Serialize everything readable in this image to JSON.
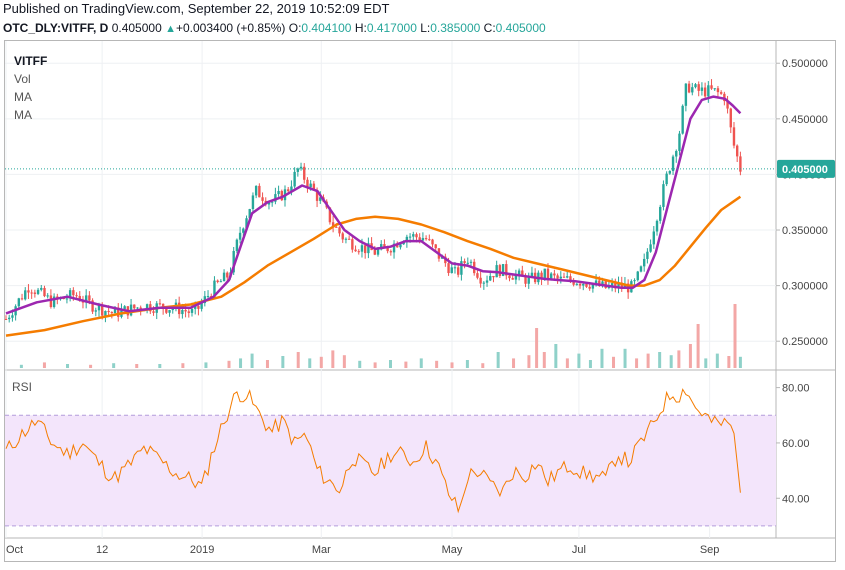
{
  "header": {
    "published": "Published on TradingView.com, September 22, 2019 10:52:09 EDT",
    "symbol": "OTC_DLY:VITFF, D",
    "last": "0.405000",
    "change_icon": "triangle-up-icon",
    "change": "+0.003400 (+0.85%)",
    "o_label": "O:",
    "o_value": "0.404100",
    "h_label": "H:",
    "h_value": "0.417000",
    "l_label": "L:",
    "l_value": "0.385000",
    "c_label": "C:",
    "c_value": "0.405000"
  },
  "legend": {
    "symbol": "VITFF",
    "vol": "Vol",
    "ma1": "MA",
    "ma2": "MA"
  },
  "colors": {
    "up": "#26a69a",
    "down": "#ef5350",
    "ma_fast": "#9c27b0",
    "ma_slow": "#f57c00",
    "rsi": "#f57c00",
    "rsi_band": "#f3e5fb",
    "price_tag": "#26a69a"
  },
  "chart_data": [
    {
      "type": "candlestick",
      "title": "VITFF",
      "y_ticks": [
        "0.500000",
        "0.450000",
        "0.400000",
        "0.350000",
        "0.300000",
        "0.250000"
      ],
      "y_tick_values": [
        0.5,
        0.45,
        0.4,
        0.35,
        0.3,
        0.25
      ],
      "ylim": [
        0.225,
        0.52
      ],
      "x_ticks": [
        "Oct",
        "12",
        "2019",
        "Mar",
        "May",
        "Jul",
        "Sep"
      ],
      "x_tick_positions": [
        0.0,
        0.125,
        0.255,
        0.41,
        0.58,
        0.745,
        0.915
      ],
      "last_price": "0.405000",
      "last_price_value": 0.405,
      "series": [
        {
          "name": "MA",
          "kind": "ma_fast"
        },
        {
          "name": "MA",
          "kind": "ma_slow"
        }
      ],
      "price_path": [
        [
          0.0,
          0.27
        ],
        [
          0.03,
          0.3
        ],
        [
          0.06,
          0.285
        ],
        [
          0.09,
          0.292
        ],
        [
          0.11,
          0.283
        ],
        [
          0.14,
          0.275
        ],
        [
          0.18,
          0.282
        ],
        [
          0.22,
          0.28
        ],
        [
          0.245,
          0.275
        ],
        [
          0.27,
          0.298
        ],
        [
          0.29,
          0.31
        ],
        [
          0.305,
          0.35
        ],
        [
          0.325,
          0.385
        ],
        [
          0.345,
          0.375
        ],
        [
          0.365,
          0.385
        ],
        [
          0.38,
          0.405
        ],
        [
          0.395,
          0.39
        ],
        [
          0.41,
          0.375
        ],
        [
          0.425,
          0.355
        ],
        [
          0.44,
          0.342
        ],
        [
          0.46,
          0.335
        ],
        [
          0.48,
          0.33
        ],
        [
          0.5,
          0.335
        ],
        [
          0.52,
          0.345
        ],
        [
          0.545,
          0.343
        ],
        [
          0.565,
          0.325
        ],
        [
          0.585,
          0.31
        ],
        [
          0.6,
          0.325
        ],
        [
          0.62,
          0.305
        ],
        [
          0.64,
          0.315
        ],
        [
          0.66,
          0.31
        ],
        [
          0.68,
          0.305
        ],
        [
          0.7,
          0.31
        ],
        [
          0.72,
          0.305
        ],
        [
          0.74,
          0.305
        ],
        [
          0.76,
          0.302
        ],
        [
          0.78,
          0.298
        ],
        [
          0.8,
          0.3
        ],
        [
          0.815,
          0.298
        ],
        [
          0.83,
          0.32
        ],
        [
          0.845,
          0.36
        ],
        [
          0.86,
          0.4
        ],
        [
          0.875,
          0.435
        ],
        [
          0.885,
          0.48
        ],
        [
          0.9,
          0.475
        ],
        [
          0.92,
          0.475
        ],
        [
          0.935,
          0.47
        ],
        [
          0.945,
          0.43
        ],
        [
          0.955,
          0.405
        ]
      ],
      "ma_fast_path": [
        [
          0.0,
          0.275
        ],
        [
          0.04,
          0.285
        ],
        [
          0.08,
          0.29
        ],
        [
          0.12,
          0.283
        ],
        [
          0.16,
          0.277
        ],
        [
          0.2,
          0.28
        ],
        [
          0.24,
          0.28
        ],
        [
          0.27,
          0.29
        ],
        [
          0.29,
          0.305
        ],
        [
          0.305,
          0.335
        ],
        [
          0.32,
          0.365
        ],
        [
          0.34,
          0.375
        ],
        [
          0.36,
          0.38
        ],
        [
          0.385,
          0.39
        ],
        [
          0.405,
          0.385
        ],
        [
          0.425,
          0.365
        ],
        [
          0.44,
          0.35
        ],
        [
          0.46,
          0.34
        ],
        [
          0.48,
          0.333
        ],
        [
          0.5,
          0.335
        ],
        [
          0.52,
          0.34
        ],
        [
          0.54,
          0.34
        ],
        [
          0.56,
          0.33
        ],
        [
          0.58,
          0.32
        ],
        [
          0.6,
          0.318
        ],
        [
          0.62,
          0.313
        ],
        [
          0.64,
          0.312
        ],
        [
          0.66,
          0.31
        ],
        [
          0.68,
          0.308
        ],
        [
          0.7,
          0.306
        ],
        [
          0.72,
          0.305
        ],
        [
          0.74,
          0.304
        ],
        [
          0.76,
          0.302
        ],
        [
          0.78,
          0.3
        ],
        [
          0.8,
          0.298
        ],
        [
          0.815,
          0.298
        ],
        [
          0.83,
          0.305
        ],
        [
          0.845,
          0.33
        ],
        [
          0.86,
          0.37
        ],
        [
          0.875,
          0.41
        ],
        [
          0.89,
          0.45
        ],
        [
          0.905,
          0.467
        ],
        [
          0.92,
          0.47
        ],
        [
          0.935,
          0.468
        ],
        [
          0.945,
          0.462
        ],
        [
          0.955,
          0.455
        ]
      ],
      "ma_slow_path": [
        [
          0.0,
          0.255
        ],
        [
          0.05,
          0.26
        ],
        [
          0.1,
          0.268
        ],
        [
          0.15,
          0.275
        ],
        [
          0.2,
          0.28
        ],
        [
          0.24,
          0.283
        ],
        [
          0.28,
          0.29
        ],
        [
          0.31,
          0.303
        ],
        [
          0.34,
          0.318
        ],
        [
          0.37,
          0.33
        ],
        [
          0.4,
          0.342
        ],
        [
          0.43,
          0.355
        ],
        [
          0.455,
          0.36
        ],
        [
          0.48,
          0.362
        ],
        [
          0.51,
          0.36
        ],
        [
          0.54,
          0.355
        ],
        [
          0.57,
          0.348
        ],
        [
          0.6,
          0.34
        ],
        [
          0.63,
          0.333
        ],
        [
          0.66,
          0.325
        ],
        [
          0.69,
          0.32
        ],
        [
          0.72,
          0.315
        ],
        [
          0.75,
          0.31
        ],
        [
          0.78,
          0.305
        ],
        [
          0.81,
          0.3
        ],
        [
          0.83,
          0.3
        ],
        [
          0.85,
          0.305
        ],
        [
          0.87,
          0.318
        ],
        [
          0.89,
          0.335
        ],
        [
          0.91,
          0.352
        ],
        [
          0.93,
          0.368
        ],
        [
          0.955,
          0.38
        ]
      ]
    },
    {
      "type": "line",
      "title": "RSI",
      "y_ticks": [
        "80.00",
        "60.00",
        "40.00"
      ],
      "y_tick_values": [
        80,
        60,
        40
      ],
      "ylim": [
        26,
        86
      ],
      "band": [
        30,
        70
      ],
      "rsi_path": [
        [
          0.0,
          57
        ],
        [
          0.02,
          63
        ],
        [
          0.04,
          68
        ],
        [
          0.06,
          60
        ],
        [
          0.08,
          56
        ],
        [
          0.1,
          60
        ],
        [
          0.12,
          53
        ],
        [
          0.14,
          47
        ],
        [
          0.16,
          52
        ],
        [
          0.18,
          58
        ],
        [
          0.2,
          54
        ],
        [
          0.22,
          49
        ],
        [
          0.24,
          47
        ],
        [
          0.255,
          44
        ],
        [
          0.27,
          58
        ],
        [
          0.285,
          69
        ],
        [
          0.3,
          78
        ],
        [
          0.315,
          77
        ],
        [
          0.33,
          70
        ],
        [
          0.345,
          64
        ],
        [
          0.36,
          68
        ],
        [
          0.375,
          60
        ],
        [
          0.39,
          63
        ],
        [
          0.405,
          50
        ],
        [
          0.42,
          46
        ],
        [
          0.435,
          43
        ],
        [
          0.45,
          55
        ],
        [
          0.465,
          52
        ],
        [
          0.48,
          49
        ],
        [
          0.5,
          56
        ],
        [
          0.515,
          56
        ],
        [
          0.53,
          53
        ],
        [
          0.545,
          59
        ],
        [
          0.56,
          53
        ],
        [
          0.575,
          42
        ],
        [
          0.59,
          35
        ],
        [
          0.6,
          48
        ],
        [
          0.615,
          50
        ],
        [
          0.63,
          45
        ],
        [
          0.645,
          42
        ],
        [
          0.66,
          50
        ],
        [
          0.675,
          48
        ],
        [
          0.69,
          53
        ],
        [
          0.705,
          46
        ],
        [
          0.72,
          50
        ],
        [
          0.735,
          52
        ],
        [
          0.75,
          49
        ],
        [
          0.765,
          48
        ],
        [
          0.78,
          47
        ],
        [
          0.795,
          56
        ],
        [
          0.81,
          53
        ],
        [
          0.825,
          60
        ],
        [
          0.84,
          66
        ],
        [
          0.855,
          74
        ],
        [
          0.865,
          78
        ],
        [
          0.875,
          77
        ],
        [
          0.885,
          80
        ],
        [
          0.895,
          73
        ],
        [
          0.905,
          71
        ],
        [
          0.92,
          67
        ],
        [
          0.935,
          67
        ],
        [
          0.945,
          66
        ],
        [
          0.95,
          55
        ],
        [
          0.955,
          42
        ]
      ]
    }
  ],
  "volume": {
    "label": "Vol",
    "bars": [
      [
        0.02,
        0.04,
        "u"
      ],
      [
        0.05,
        0.07,
        "d"
      ],
      [
        0.08,
        0.05,
        "u"
      ],
      [
        0.11,
        0.04,
        "d"
      ],
      [
        0.14,
        0.06,
        "u"
      ],
      [
        0.17,
        0.05,
        "d"
      ],
      [
        0.2,
        0.05,
        "u"
      ],
      [
        0.23,
        0.06,
        "d"
      ],
      [
        0.26,
        0.07,
        "u"
      ],
      [
        0.29,
        0.09,
        "d"
      ],
      [
        0.305,
        0.12,
        "u"
      ],
      [
        0.32,
        0.18,
        "u"
      ],
      [
        0.34,
        0.1,
        "d"
      ],
      [
        0.36,
        0.15,
        "u"
      ],
      [
        0.38,
        0.2,
        "d"
      ],
      [
        0.395,
        0.12,
        "u"
      ],
      [
        0.41,
        0.14,
        "d"
      ],
      [
        0.425,
        0.22,
        "d"
      ],
      [
        0.44,
        0.16,
        "d"
      ],
      [
        0.46,
        0.09,
        "u"
      ],
      [
        0.48,
        0.07,
        "d"
      ],
      [
        0.5,
        0.1,
        "u"
      ],
      [
        0.52,
        0.08,
        "d"
      ],
      [
        0.54,
        0.12,
        "u"
      ],
      [
        0.56,
        0.09,
        "d"
      ],
      [
        0.58,
        0.07,
        "d"
      ],
      [
        0.6,
        0.1,
        "u"
      ],
      [
        0.62,
        0.06,
        "d"
      ],
      [
        0.64,
        0.2,
        "u"
      ],
      [
        0.66,
        0.12,
        "d"
      ],
      [
        0.68,
        0.16,
        "d"
      ],
      [
        0.69,
        0.5,
        "d"
      ],
      [
        0.7,
        0.2,
        "d"
      ],
      [
        0.715,
        0.3,
        "u"
      ],
      [
        0.73,
        0.12,
        "d"
      ],
      [
        0.745,
        0.18,
        "u"
      ],
      [
        0.76,
        0.1,
        "u"
      ],
      [
        0.775,
        0.24,
        "u"
      ],
      [
        0.79,
        0.14,
        "d"
      ],
      [
        0.805,
        0.24,
        "u"
      ],
      [
        0.82,
        0.12,
        "d"
      ],
      [
        0.835,
        0.18,
        "d"
      ],
      [
        0.85,
        0.2,
        "u"
      ],
      [
        0.865,
        0.16,
        "u"
      ],
      [
        0.875,
        0.22,
        "d"
      ],
      [
        0.89,
        0.3,
        "d"
      ],
      [
        0.9,
        0.55,
        "d"
      ],
      [
        0.91,
        0.12,
        "u"
      ],
      [
        0.925,
        0.18,
        "u"
      ],
      [
        0.94,
        0.15,
        "d"
      ],
      [
        0.948,
        0.8,
        "d"
      ],
      [
        0.955,
        0.14,
        "u"
      ]
    ]
  }
}
